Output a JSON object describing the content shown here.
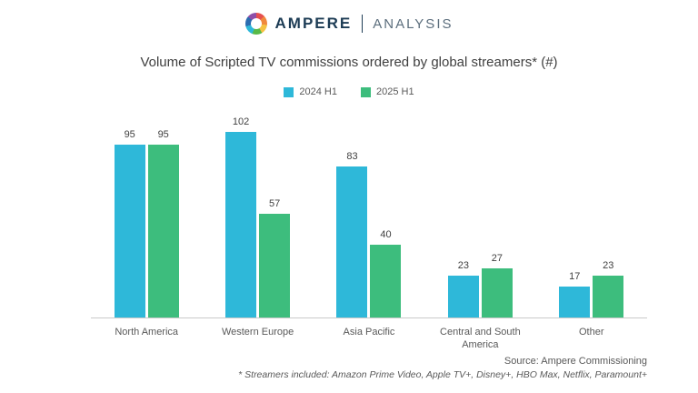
{
  "logo": {
    "brand": "AMPERE",
    "secondary": "ANALYSIS"
  },
  "title": "Volume of Scripted TV commissions ordered by global streamers* (#)",
  "colors": {
    "series_2024": "#2eb8d9",
    "series_2025": "#3dbd7d"
  },
  "chart_data": {
    "type": "bar",
    "title": "Volume of Scripted TV commissions ordered by global streamers* (#)",
    "categories": [
      "North America",
      "Western Europe",
      "Asia Pacific",
      "Central and South America",
      "Other"
    ],
    "series": [
      {
        "name": "2024 H1",
        "color": "#2eb8d9",
        "values": [
          95,
          102,
          83,
          23,
          17
        ]
      },
      {
        "name": "2025 H1",
        "color": "#3dbd7d",
        "values": [
          95,
          57,
          40,
          27,
          23
        ]
      }
    ],
    "xlabel": "",
    "ylabel": "",
    "ylim": [
      0,
      110
    ],
    "grid": false,
    "legend_position": "top",
    "data_labels": true
  },
  "footer": {
    "source": "Source: Ampere Commissioning",
    "note": "* Streamers included: Amazon Prime Video, Apple TV+, Disney+, HBO Max, Netflix, Paramount+"
  }
}
